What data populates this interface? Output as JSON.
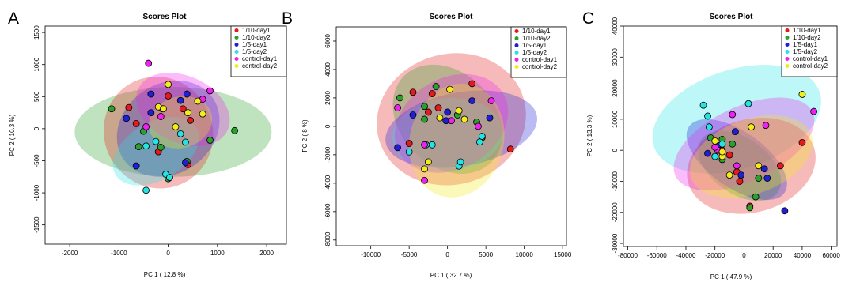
{
  "groups": [
    {
      "name": "1/10-day1",
      "color": "#e41a1c"
    },
    {
      "name": "1/10-day2",
      "color": "#2ca02c"
    },
    {
      "name": "1/5-day1",
      "color": "#1f1fd6"
    },
    {
      "name": "1/5-day2",
      "color": "#25e3e3"
    },
    {
      "name": "control-day1",
      "color": "#ee22ee"
    },
    {
      "name": "control-day2",
      "color": "#f2ec1a"
    }
  ],
  "chart_data": [
    {
      "panel": "A",
      "type": "scatter",
      "title": "Scores Plot",
      "xlabel": "PC 1 ( 12.8 %)",
      "ylabel": "PC 2 ( 10.3 %)",
      "xlim": [
        -2500,
        2400
      ],
      "ylim": [
        -1800,
        1600
      ],
      "xticks": [
        -2000,
        -1000,
        0,
        1000,
        2000
      ],
      "yticks": [
        -1500,
        -1000,
        -500,
        0,
        500,
        1000,
        1500
      ],
      "grid": false,
      "legend": "top-right",
      "ellipses": [
        {
          "series": "1/10-day2",
          "cx": 100,
          "cy": -50,
          "rx": 2000,
          "ry": 700,
          "angle": 0
        },
        {
          "series": "1/10-day1",
          "cx": -200,
          "cy": -60,
          "rx": 1100,
          "ry": 880,
          "angle": 30
        },
        {
          "series": "1/5-day1",
          "cx": 0,
          "cy": 0,
          "rx": 1100,
          "ry": 700,
          "angle": 35
        },
        {
          "series": "1/5-day2",
          "cx": -250,
          "cy": -350,
          "rx": 950,
          "ry": 450,
          "angle": 30
        },
        {
          "series": "control-day1",
          "cx": 300,
          "cy": 300,
          "rx": 1000,
          "ry": 520,
          "angle": -25
        },
        {
          "series": "control-day2",
          "cx": 250,
          "cy": 100,
          "rx": 650,
          "ry": 400,
          "angle": 15
        }
      ],
      "series": [
        {
          "name": "1/10-day1",
          "points": [
            [
              -800,
              330
            ],
            [
              -650,
              80
            ],
            [
              0,
              510
            ],
            [
              300,
              310
            ],
            [
              -200,
              -360
            ],
            [
              400,
              -560
            ],
            [
              450,
              130
            ]
          ]
        },
        {
          "name": "1/10-day2",
          "points": [
            [
              -1150,
              310
            ],
            [
              -500,
              -40
            ],
            [
              -600,
              -280
            ],
            [
              -150,
              -290
            ],
            [
              0,
              -780
            ],
            [
              380,
              -510
            ],
            [
              850,
              -180
            ],
            [
              1350,
              -30
            ]
          ]
        },
        {
          "name": "1/5-day1",
          "points": [
            [
              -850,
              160
            ],
            [
              -350,
              540
            ],
            [
              -350,
              250
            ],
            [
              250,
              440
            ],
            [
              380,
              540
            ],
            [
              -650,
              -580
            ],
            [
              350,
              -530
            ]
          ]
        },
        {
          "name": "1/5-day2",
          "points": [
            [
              -450,
              -270
            ],
            [
              -250,
              -200
            ],
            [
              -450,
              -960
            ],
            [
              250,
              -80
            ],
            [
              350,
              -210
            ],
            [
              -50,
              -710
            ],
            [
              30,
              -760
            ]
          ]
        },
        {
          "name": "control-day1",
          "points": [
            [
              -400,
              1020
            ],
            [
              -450,
              30
            ],
            [
              700,
              460
            ],
            [
              850,
              590
            ],
            [
              -120,
              310
            ],
            [
              -150,
              190
            ]
          ]
        },
        {
          "name": "control-day2",
          "points": [
            [
              0,
              690
            ],
            [
              -200,
              340
            ],
            [
              -100,
              310
            ],
            [
              600,
              430
            ],
            [
              700,
              230
            ],
            [
              400,
              250
            ],
            [
              150,
              30
            ]
          ]
        }
      ]
    },
    {
      "panel": "B",
      "type": "scatter",
      "title": "Scores Plot",
      "xlabel": "PC 1 ( 32.7 %)",
      "ylabel": "PC 2 ( 8 %)",
      "xlim": [
        -14500,
        15500
      ],
      "ylim": [
        -8400,
        7000
      ],
      "xticks": [
        -10000,
        -5000,
        0,
        5000,
        10000,
        15000
      ],
      "yticks": [
        -8000,
        -6000,
        -4000,
        -2000,
        0,
        2000,
        4000,
        6000
      ],
      "grid": false,
      "legend": "top-right",
      "ellipses": [
        {
          "series": "1/10-day1",
          "cx": 500,
          "cy": 500,
          "rx": 9800,
          "ry": 4600,
          "angle": 15
        },
        {
          "series": "1/10-day2",
          "cx": 0,
          "cy": 500,
          "rx": 8000,
          "ry": 3300,
          "angle": -45
        },
        {
          "series": "1/5-day1",
          "cx": 1800,
          "cy": -200,
          "rx": 10000,
          "ry": 2600,
          "angle": 10
        },
        {
          "series": "1/5-day2",
          "cx": 0,
          "cy": -600,
          "rx": 7200,
          "ry": 2600,
          "angle": 5
        },
        {
          "series": "control-day1",
          "cx": 500,
          "cy": 200,
          "rx": 7800,
          "ry": 3200,
          "angle": 30
        },
        {
          "series": "control-day2",
          "cx": 1200,
          "cy": -1000,
          "rx": 7500,
          "ry": 3300,
          "angle": 75
        }
      ],
      "series": [
        {
          "name": "1/10-day1",
          "points": [
            [
              -4500,
              2400
            ],
            [
              -2000,
              2300
            ],
            [
              -5000,
              -1200
            ],
            [
              3200,
              3000
            ],
            [
              8200,
              -1600
            ],
            [
              -2500,
              1000
            ],
            [
              -1200,
              1300
            ]
          ]
        },
        {
          "name": "1/10-day2",
          "points": [
            [
              -6200,
              2000
            ],
            [
              -1500,
              2800
            ],
            [
              -3000,
              1400
            ],
            [
              3800,
              300
            ],
            [
              4500,
              -800
            ],
            [
              1300,
              800
            ],
            [
              -3000,
              500
            ]
          ]
        },
        {
          "name": "1/5-day1",
          "points": [
            [
              -6500,
              -1500
            ],
            [
              -4500,
              800
            ],
            [
              0,
              1000
            ],
            [
              3200,
              1800
            ],
            [
              5500,
              600
            ],
            [
              -200,
              400
            ]
          ]
        },
        {
          "name": "1/5-day2",
          "points": [
            [
              -5000,
              -1800
            ],
            [
              -2800,
              -1300
            ],
            [
              -2000,
              -1300
            ],
            [
              4200,
              -1100
            ],
            [
              4500,
              -700
            ],
            [
              1500,
              -2800
            ],
            [
              1700,
              -2500
            ]
          ]
        },
        {
          "name": "control-day1",
          "points": [
            [
              -6500,
              1300
            ],
            [
              -3000,
              -1300
            ],
            [
              -3000,
              -3800
            ],
            [
              5700,
              1800
            ],
            [
              4000,
              0
            ],
            [
              500,
              400
            ]
          ]
        },
        {
          "name": "control-day2",
          "points": [
            [
              300,
              2600
            ],
            [
              1500,
              1100
            ],
            [
              -1000,
              600
            ],
            [
              2200,
              500
            ],
            [
              -2500,
              -2500
            ],
            [
              -3000,
              -3000
            ]
          ]
        }
      ]
    },
    {
      "panel": "C",
      "type": "scatter",
      "title": "Scores Plot",
      "xlabel": "PC 1 ( 47.9 %)",
      "ylabel": "PC 2 ( 13.3 %)",
      "xlim": [
        -83000,
        64000
      ],
      "ylim": [
        -31000,
        40000
      ],
      "xticks": [
        -80000,
        -60000,
        -40000,
        -20000,
        0,
        20000,
        40000,
        60000
      ],
      "yticks": [
        -30000,
        -20000,
        -10000,
        0,
        10000,
        20000,
        30000,
        40000
      ],
      "grid": false,
      "legend": "top-right",
      "ellipses": [
        {
          "series": "1/5-day2",
          "cx": -5000,
          "cy": 10000,
          "rx": 60000,
          "ry": 16000,
          "angle": 18
        },
        {
          "series": "1/10-day1",
          "cx": 5000,
          "cy": -5000,
          "rx": 45000,
          "ry": 15000,
          "angle": 15
        },
        {
          "series": "1/10-day2",
          "cx": -3000,
          "cy": -5000,
          "rx": 32000,
          "ry": 9000,
          "angle": -35
        },
        {
          "series": "1/5-day1",
          "cx": -5000,
          "cy": -3000,
          "rx": 40000,
          "ry": 9000,
          "angle": -35
        },
        {
          "series": "control-day1",
          "cx": 0,
          "cy": 2000,
          "rx": 52000,
          "ry": 12000,
          "angle": 25
        },
        {
          "series": "control-day2",
          "cx": 5000,
          "cy": -2000,
          "rx": 44000,
          "ry": 12000,
          "angle": 20
        }
      ],
      "series": [
        {
          "name": "1/10-day1",
          "points": [
            [
              40000,
              2500
            ],
            [
              25000,
              -5000
            ],
            [
              -5000,
              -7000
            ],
            [
              -10000,
              -1500
            ],
            [
              -15000,
              0
            ],
            [
              -3000,
              -10000
            ],
            [
              4000,
              -18000
            ]
          ]
        },
        {
          "name": "1/10-day2",
          "points": [
            [
              -23000,
              4000
            ],
            [
              -15000,
              -3000
            ],
            [
              -8000,
              2000
            ],
            [
              10000,
              -9000
            ],
            [
              8000,
              -15000
            ],
            [
              4000,
              -18500
            ],
            [
              -15000,
              3500
            ]
          ]
        },
        {
          "name": "1/5-day1",
          "points": [
            [
              -25000,
              -1000
            ],
            [
              -18000,
              1500
            ],
            [
              -6000,
              6000
            ],
            [
              14000,
              -6000
            ],
            [
              16000,
              -9000
            ],
            [
              28000,
              -19500
            ],
            [
              -2000,
              -8000
            ]
          ]
        },
        {
          "name": "1/5-day2",
          "points": [
            [
              -28000,
              14500
            ],
            [
              -25000,
              11000
            ],
            [
              -24000,
              7500
            ],
            [
              3000,
              15000
            ],
            [
              32000,
              29500
            ],
            [
              -20000,
              -2000
            ],
            [
              -15000,
              2000
            ]
          ]
        },
        {
          "name": "control-day1",
          "points": [
            [
              48000,
              12500
            ],
            [
              -18000,
              0
            ],
            [
              -5000,
              -5000
            ],
            [
              15000,
              8000
            ],
            [
              -8000,
              11500
            ],
            [
              -20000,
              1000
            ]
          ]
        },
        {
          "name": "control-day2",
          "points": [
            [
              40000,
              18000
            ],
            [
              5000,
              7500
            ],
            [
              -10000,
              -8000
            ],
            [
              -15000,
              -2000
            ],
            [
              10000,
              -5000
            ],
            [
              -20000,
              3000
            ],
            [
              -15000,
              -500
            ]
          ]
        }
      ]
    }
  ]
}
